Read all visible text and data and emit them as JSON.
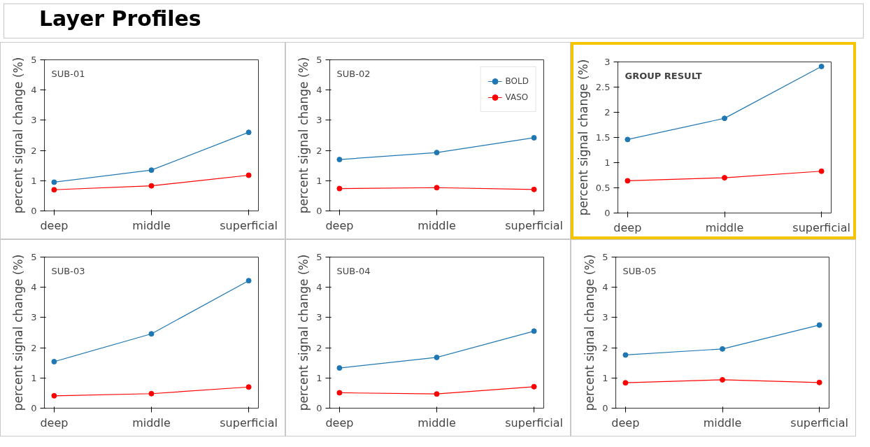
{
  "chart_data": [
    {
      "type": "line",
      "title": "SUB-01",
      "annotations": [
        "Layer Profiles"
      ],
      "ylabel": "percent signal change (%)",
      "categories": [
        "deep",
        "middle",
        "superficial"
      ],
      "ylim": [
        0,
        5
      ],
      "yticks": [
        0,
        1,
        2,
        3,
        4,
        5
      ],
      "marker": "circle",
      "grid": false,
      "legend": false,
      "series": [
        {
          "color": "#1f77b4",
          "values": [
            0.95,
            1.35,
            2.6
          ]
        },
        {
          "color": "#ff0000",
          "values": [
            0.7,
            0.83,
            1.18
          ]
        }
      ]
    },
    {
      "type": "line",
      "title": "SUB-02",
      "ylabel": "percent signal change (%)",
      "categories": [
        "deep",
        "middle",
        "superficial"
      ],
      "ylim": [
        0,
        5
      ],
      "yticks": [
        0,
        1,
        2,
        3,
        4,
        5
      ],
      "marker": "circle",
      "grid": false,
      "legend": "top right",
      "series": [
        {
          "name": "BOLD",
          "color": "#1f77b4",
          "values": [
            1.7,
            1.93,
            2.42
          ]
        },
        {
          "name": "VASO",
          "color": "#ff0000",
          "values": [
            0.74,
            0.77,
            0.71
          ]
        }
      ]
    },
    {
      "type": "line",
      "title": "GROUP RESULT",
      "ylabel": "percent signal change (%)",
      "categories": [
        "deep",
        "middle",
        "superficial"
      ],
      "ylim": [
        0,
        3
      ],
      "yticks": [
        0,
        0.5,
        1,
        1.5,
        2,
        2.5,
        3
      ],
      "marker": "circle",
      "grid": false,
      "legend": false,
      "series": [
        {
          "color": "#1f77b4",
          "values": [
            1.46,
            1.88,
            2.91
          ]
        },
        {
          "color": "#ff0000",
          "values": [
            0.64,
            0.7,
            0.83
          ]
        }
      ]
    },
    {
      "type": "line",
      "title": "SUB-03",
      "ylabel": "percent signal change (%)",
      "categories": [
        "deep",
        "middle",
        "superficial"
      ],
      "ylim": [
        0,
        5
      ],
      "yticks": [
        0,
        1,
        2,
        3,
        4,
        5
      ],
      "marker": "circle",
      "grid": false,
      "legend": false,
      "series": [
        {
          "color": "#1f77b4",
          "values": [
            1.54,
            2.46,
            4.22
          ]
        },
        {
          "color": "#ff0000",
          "values": [
            0.41,
            0.48,
            0.7
          ]
        }
      ]
    },
    {
      "type": "line",
      "title": "SUB-04",
      "ylabel": "percent signal change (%)",
      "categories": [
        "deep",
        "middle",
        "superficial"
      ],
      "ylim": [
        0,
        5
      ],
      "yticks": [
        0,
        1,
        2,
        3,
        4,
        5
      ],
      "marker": "circle",
      "grid": false,
      "legend": false,
      "series": [
        {
          "color": "#1f77b4",
          "values": [
            1.33,
            1.68,
            2.55
          ]
        },
        {
          "color": "#ff0000",
          "values": [
            0.51,
            0.47,
            0.71
          ]
        }
      ]
    },
    {
      "type": "line",
      "title": "SUB-05",
      "ylabel": "percent signal change (%)",
      "categories": [
        "deep",
        "middle",
        "superficial"
      ],
      "ylim": [
        0,
        5
      ],
      "yticks": [
        0,
        1,
        2,
        3,
        4,
        5
      ],
      "marker": "circle",
      "grid": false,
      "legend": false,
      "series": [
        {
          "color": "#1f77b4",
          "values": [
            1.76,
            1.96,
            2.75
          ]
        },
        {
          "color": "#ff0000",
          "values": [
            0.84,
            0.94,
            0.85
          ]
        }
      ]
    }
  ]
}
